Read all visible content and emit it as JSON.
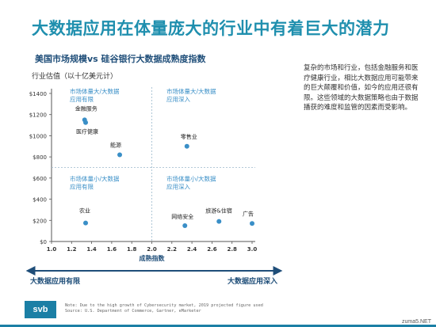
{
  "slide": {
    "title": "大数据应用在体量庞大的行业中有着巨大的潜力",
    "side_note": "复杂的市场和行业，包括金融服务和医疗健康行业，相比大数据应用可能带来的巨大颠覆和价值，如今的应用还很有限。这些领域的大数据策略也由于数据播获的难度和监管的因素而受影响。",
    "footer_line1": "Note: Due to the high growth of Cybersecurity market, 2019 projected figure used",
    "footer_line2": "Source: U.S. Department of Commerce, Gartner, eMarketer",
    "logo": "svb",
    "watermark": "zuma5.NET"
  },
  "chart_data": {
    "type": "scatter",
    "title": "美国市场规模vs 硅谷银行大数据成熟度指数",
    "ylabel": "行业估值（以十亿美元计）",
    "xlabel": "成熟指数",
    "xlim": [
      1.0,
      3.0
    ],
    "ylim": [
      0,
      1400
    ],
    "x_ticks": [
      "1.0",
      "1.2",
      "1.4",
      "1.6",
      "1.8",
      "2.0",
      "2.2",
      "2.4",
      "2.6",
      "2.8",
      "3.0"
    ],
    "y_ticks": [
      "$0",
      "$200",
      "$400",
      "$600",
      "$800",
      "$1000",
      "$1200",
      "$1400"
    ],
    "quadrants": [
      "市场体量大/大数据应用有限",
      "市场体量大/大数据应用深入",
      "市场体量小/大数据应用有限",
      "市场体量小/大数据应用深入"
    ],
    "points": [
      {
        "label": "金融服务",
        "x": 1.33,
        "y": 1150
      },
      {
        "label": "医疗健康",
        "x": 1.34,
        "y": 1125
      },
      {
        "label": "能源",
        "x": 1.68,
        "y": 820
      },
      {
        "label": "零售业",
        "x": 2.35,
        "y": 900
      },
      {
        "label": "农业",
        "x": 1.34,
        "y": 175
      },
      {
        "label": "网络安全",
        "x": 2.33,
        "y": 150
      },
      {
        "label": "旅游&住宿",
        "x": 2.67,
        "y": 190
      },
      {
        "label": "广告",
        "x": 3.0,
        "y": 170
      }
    ],
    "arrow_left_label": "大数据应用有限",
    "arrow_right_label": "大数据应用深入",
    "colors": {
      "point": "#3a8fc7",
      "quadrant_text": "#3a8fc7",
      "arrow": "#1f4e79",
      "axis": "#555555"
    }
  }
}
